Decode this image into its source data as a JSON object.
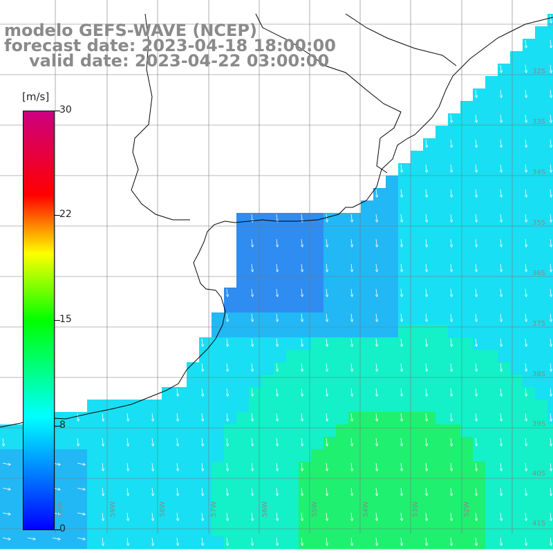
{
  "titles": {
    "line1": "modelo GEFS-WAVE (NCEP)",
    "line2": "forecast date: 2023-04-18 18:00:00",
    "line3": "valid date: 2023-04-22 03:00:00"
  },
  "colorbar": {
    "unit": "[m/s]",
    "ticks": [
      "30",
      "22",
      "15",
      "8",
      "0"
    ],
    "stops": [
      "#0000ff",
      "#00ffff",
      "#00ff00",
      "#ffff00",
      "#ff0000",
      "#cc0080"
    ]
  },
  "grid": {
    "lat_labels": [
      "32S",
      "33S",
      "34S",
      "35S",
      "36S",
      "37S",
      "38S",
      "39S",
      "40S",
      "41S"
    ],
    "lon_labels": [
      "60W",
      "59W",
      "58W",
      "57W",
      "56W",
      "55W",
      "54W",
      "53W",
      "52W"
    ]
  },
  "field_colors": {
    "blue": "#2f8cf0",
    "cyan_blue": "#22b8f6",
    "cyan": "#18dff3",
    "cyan_green": "#14f0c8",
    "green": "#20f070"
  }
}
